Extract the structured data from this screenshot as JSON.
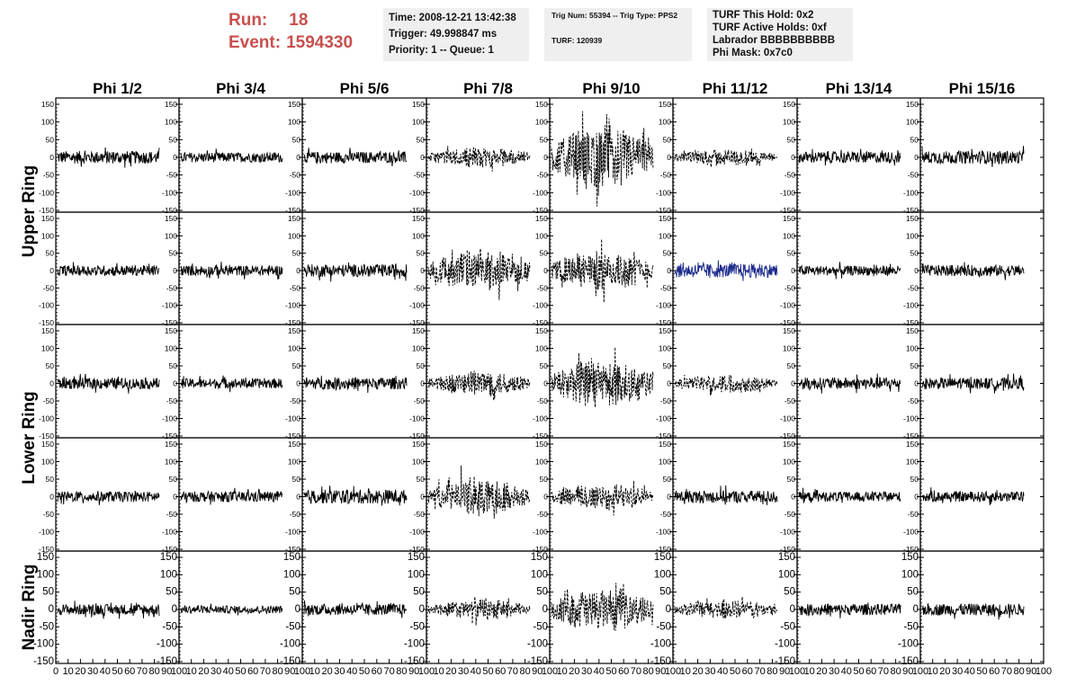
{
  "header": {
    "run_label": "Run:",
    "run_value": "18",
    "event_label": "Event:",
    "event_value": "1594330",
    "box1": [
      "Time: 2008-12-21 13:42:38",
      "Trigger: 49.998847 ms",
      "Priority: 1 -- Queue: 1"
    ],
    "box2": [
      "Trig Num: 55394 -- Trig Type: PPS2",
      "TURF: 120939"
    ],
    "box3": [
      "TURF This Hold: 0x2",
      "TURF Active Holds: 0xf",
      "Labrador BBBBBBBBBB",
      "Phi Mask: 0x7c0"
    ]
  },
  "colors": {
    "header_red": "#c8504d",
    "trace": "#000000",
    "highlight_trace": "#1c2a8c",
    "info_bg": "#efefef"
  },
  "chart_data": {
    "type": "line",
    "layout": "grid of waveform panels, 5 rows x 8 columns",
    "columns": [
      "Phi 1/2",
      "Phi 3/4",
      "Phi 5/6",
      "Phi 7/8",
      "Phi 9/10",
      "Phi 11/12",
      "Phi 13/14",
      "Phi 15/16"
    ],
    "row_labels": [
      {
        "label": "Upper Ring",
        "rows": [
          0,
          1
        ]
      },
      {
        "label": "Lower Ring",
        "rows": [
          2,
          3
        ]
      },
      {
        "label": "Nadir Ring",
        "rows": [
          4
        ]
      }
    ],
    "ylim": [
      -150,
      150
    ],
    "yticks": [
      -150,
      -100,
      -50,
      0,
      50,
      100,
      150
    ],
    "xlim": [
      0,
      100
    ],
    "xticks": [
      0,
      10,
      20,
      30,
      40,
      50,
      60,
      70,
      80,
      90,
      100
    ],
    "grid": false,
    "panels": [
      [
        {
          "amp": 18,
          "style": "solid"
        },
        {
          "amp": 14,
          "style": "solid"
        },
        {
          "amp": 16,
          "style": "solid"
        },
        {
          "amp": 22,
          "style": "dashed"
        },
        {
          "amp": 70,
          "style": "dashed"
        },
        {
          "amp": 18,
          "style": "dashed"
        },
        {
          "amp": 16,
          "style": "solid"
        },
        {
          "amp": 18,
          "style": "solid"
        }
      ],
      [
        {
          "amp": 15,
          "style": "solid"
        },
        {
          "amp": 15,
          "style": "solid"
        },
        {
          "amp": 18,
          "style": "solid"
        },
        {
          "amp": 45,
          "style": "dashed"
        },
        {
          "amp": 45,
          "style": "dashed"
        },
        {
          "amp": 20,
          "style": "solid",
          "highlight": true
        },
        {
          "amp": 14,
          "style": "solid"
        },
        {
          "amp": 16,
          "style": "solid"
        }
      ],
      [
        {
          "amp": 16,
          "style": "solid"
        },
        {
          "amp": 14,
          "style": "solid"
        },
        {
          "amp": 17,
          "style": "solid"
        },
        {
          "amp": 28,
          "style": "dashed"
        },
        {
          "amp": 55,
          "style": "dashed"
        },
        {
          "amp": 20,
          "style": "dashed"
        },
        {
          "amp": 17,
          "style": "solid"
        },
        {
          "amp": 16,
          "style": "solid"
        }
      ],
      [
        {
          "amp": 15,
          "style": "solid"
        },
        {
          "amp": 15,
          "style": "solid"
        },
        {
          "amp": 20,
          "style": "solid"
        },
        {
          "amp": 40,
          "style": "dashed"
        },
        {
          "amp": 30,
          "style": "dashed"
        },
        {
          "amp": 18,
          "style": "solid"
        },
        {
          "amp": 14,
          "style": "solid"
        },
        {
          "amp": 15,
          "style": "solid"
        }
      ],
      [
        {
          "amp": 15,
          "style": "solid"
        },
        {
          "amp": 11,
          "style": "solid"
        },
        {
          "amp": 16,
          "style": "solid"
        },
        {
          "amp": 22,
          "style": "dashed"
        },
        {
          "amp": 48,
          "style": "dashed"
        },
        {
          "amp": 22,
          "style": "dashed"
        },
        {
          "amp": 16,
          "style": "solid"
        },
        {
          "amp": 17,
          "style": "solid"
        }
      ]
    ]
  }
}
